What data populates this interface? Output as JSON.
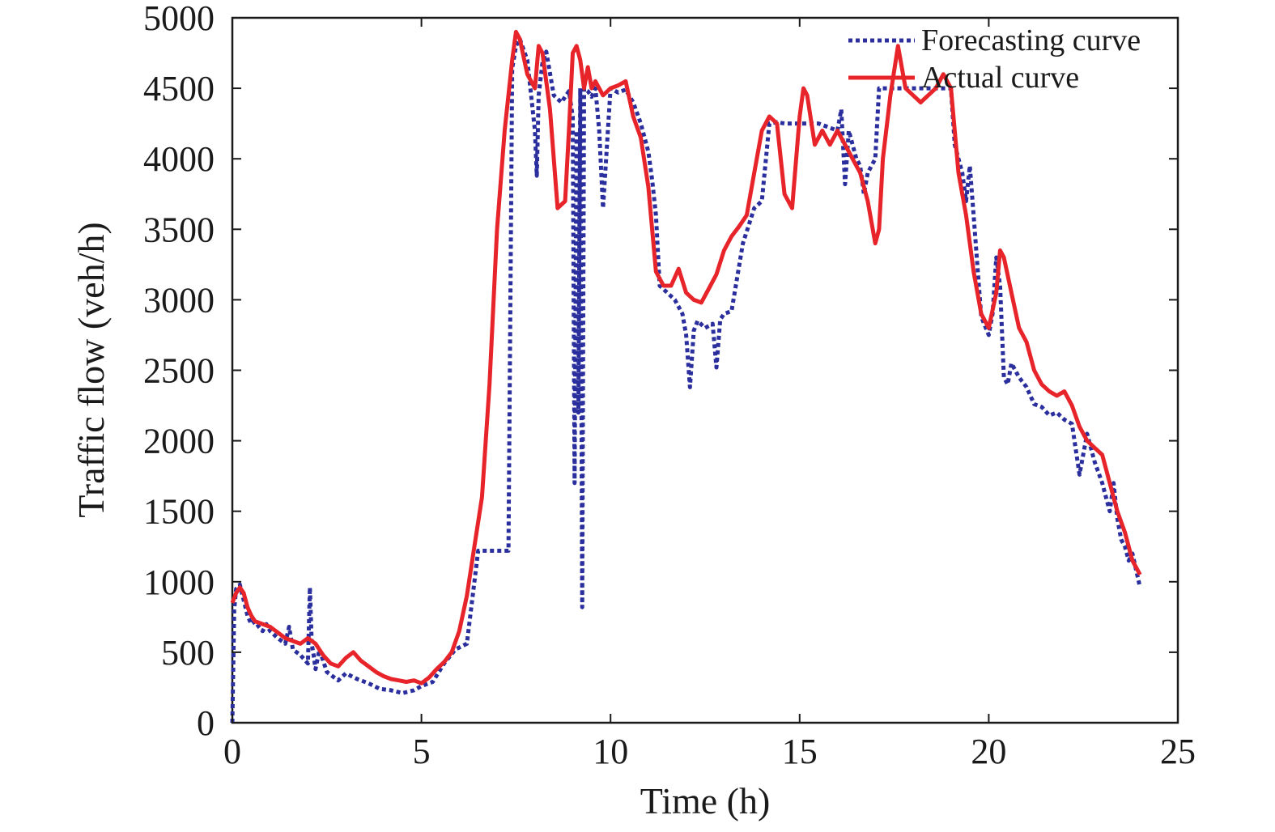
{
  "chart_data": {
    "type": "line",
    "xlabel": "Time (h)",
    "ylabel": "Traffic flow (veh/h)",
    "xlim": [
      0,
      25
    ],
    "ylim": [
      0,
      5000
    ],
    "xticks": [
      0,
      5,
      10,
      15,
      20,
      25
    ],
    "yticks": [
      0,
      500,
      1000,
      1500,
      2000,
      2500,
      3000,
      3500,
      4000,
      4500,
      5000
    ],
    "xtick_labels": [
      "0",
      "5",
      "10",
      "15",
      "20",
      "25"
    ],
    "ytick_labels": [
      "0",
      "500",
      "1000",
      "1500",
      "2000",
      "2500",
      "3000",
      "3500",
      "4000",
      "4500",
      "5000"
    ],
    "grid": false,
    "legend_position": "top-right",
    "series": [
      {
        "name": "Forecasting curve",
        "color": "#2b2f9e",
        "style": "dotted",
        "x": [
          0.0,
          0.05,
          0.1,
          0.2,
          0.3,
          0.4,
          0.5,
          0.6,
          0.7,
          0.8,
          0.9,
          1.0,
          1.2,
          1.4,
          1.5,
          1.6,
          1.8,
          2.0,
          2.05,
          2.1,
          2.15,
          2.2,
          2.3,
          2.5,
          2.8,
          3.0,
          3.3,
          3.6,
          3.9,
          4.2,
          4.5,
          4.8,
          5.0,
          5.3,
          5.6,
          5.9,
          6.2,
          6.5,
          6.7,
          7.0,
          7.3,
          7.4,
          7.5,
          7.6,
          7.8,
          8.0,
          8.05,
          8.1,
          8.2,
          8.3,
          8.5,
          8.7,
          8.9,
          9.0,
          9.05,
          9.1,
          9.15,
          9.2,
          9.25,
          9.3,
          9.4,
          9.5,
          9.6,
          9.7,
          9.8,
          10.0,
          10.2,
          10.4,
          10.6,
          10.8,
          11.0,
          11.1,
          11.2,
          11.3,
          11.5,
          11.7,
          11.9,
          12.0,
          12.1,
          12.2,
          12.3,
          12.5,
          12.7,
          12.8,
          12.9,
          13.0,
          13.2,
          13.5,
          13.8,
          14.0,
          14.2,
          14.4,
          14.6,
          14.8,
          15.0,
          15.5,
          16.0,
          16.1,
          16.2,
          16.3,
          16.5,
          16.6,
          16.7,
          16.8,
          17.0,
          17.1,
          17.2,
          17.4,
          17.6,
          18.0,
          18.4,
          18.8,
          19.0,
          19.1,
          19.2,
          19.3,
          19.4,
          19.5,
          19.6,
          19.8,
          20.0,
          20.1,
          20.2,
          20.3,
          20.4,
          20.5,
          20.6,
          20.8,
          21.0,
          21.2,
          21.4,
          21.6,
          21.8,
          22.0,
          22.2,
          22.4,
          22.6,
          22.8,
          23.0,
          23.1,
          23.2,
          23.3,
          23.4,
          23.5,
          23.6,
          23.7,
          23.8,
          24.0
        ],
        "y": [
          0,
          800,
          950,
          980,
          870,
          760,
          700,
          720,
          680,
          650,
          700,
          650,
          600,
          560,
          680,
          520,
          480,
          420,
          960,
          560,
          480,
          380,
          520,
          360,
          300,
          350,
          310,
          280,
          240,
          230,
          210,
          230,
          260,
          290,
          420,
          520,
          560,
          1220,
          1220,
          1220,
          1220,
          4640,
          4800,
          4850,
          4700,
          4200,
          3880,
          4450,
          4680,
          4760,
          4450,
          4400,
          4480,
          4300,
          1700,
          4200,
          2200,
          4500,
          820,
          4500,
          4480,
          4440,
          4500,
          4200,
          3650,
          4500,
          4470,
          4490,
          4400,
          4250,
          4050,
          3850,
          3600,
          3100,
          3050,
          3000,
          2900,
          2750,
          2380,
          2780,
          2850,
          2800,
          2830,
          2520,
          2860,
          2900,
          2920,
          3400,
          3650,
          3700,
          4250,
          4260,
          4250,
          4250,
          4250,
          4250,
          4200,
          4350,
          3820,
          4200,
          4000,
          3950,
          3750,
          3900,
          4000,
          4500,
          4500,
          4500,
          4500,
          4500,
          4500,
          4500,
          4500,
          4100,
          4000,
          3900,
          3700,
          3950,
          3600,
          2880,
          2750,
          2900,
          3300,
          3100,
          2450,
          2400,
          2550,
          2450,
          2380,
          2260,
          2240,
          2180,
          2200,
          2150,
          2120,
          1760,
          2050,
          1850,
          1700,
          1600,
          1500,
          1700,
          1450,
          1300,
          1250,
          1150,
          1200,
          960
        ]
      },
      {
        "name": "Actual curve",
        "color": "#e8242b",
        "style": "solid",
        "x": [
          0.0,
          0.1,
          0.2,
          0.3,
          0.4,
          0.5,
          0.6,
          0.8,
          1.0,
          1.2,
          1.4,
          1.6,
          1.8,
          2.0,
          2.2,
          2.4,
          2.6,
          2.8,
          3.0,
          3.2,
          3.4,
          3.6,
          3.8,
          4.0,
          4.2,
          4.4,
          4.6,
          4.8,
          5.0,
          5.2,
          5.4,
          5.6,
          5.8,
          6.0,
          6.2,
          6.4,
          6.6,
          6.8,
          7.0,
          7.2,
          7.4,
          7.5,
          7.6,
          7.8,
          8.0,
          8.1,
          8.2,
          8.4,
          8.6,
          8.8,
          8.9,
          9.0,
          9.1,
          9.2,
          9.3,
          9.4,
          9.5,
          9.6,
          9.8,
          10.0,
          10.2,
          10.4,
          10.6,
          10.8,
          11.0,
          11.2,
          11.4,
          11.6,
          11.8,
          12.0,
          12.2,
          12.4,
          12.6,
          12.8,
          13.0,
          13.2,
          13.4,
          13.6,
          13.8,
          14.0,
          14.2,
          14.4,
          14.6,
          14.8,
          15.0,
          15.1,
          15.2,
          15.4,
          15.6,
          15.8,
          16.0,
          16.2,
          16.4,
          16.6,
          16.8,
          17.0,
          17.1,
          17.2,
          17.4,
          17.6,
          17.8,
          18.0,
          18.2,
          18.4,
          18.6,
          18.8,
          19.0,
          19.2,
          19.4,
          19.6,
          19.8,
          20.0,
          20.2,
          20.3,
          20.4,
          20.6,
          20.8,
          21.0,
          21.2,
          21.4,
          21.6,
          21.8,
          22.0,
          22.2,
          22.4,
          22.6,
          22.8,
          23.0,
          23.2,
          23.4,
          23.6,
          23.8,
          24.0
        ],
        "y": [
          850,
          920,
          960,
          920,
          820,
          760,
          720,
          700,
          680,
          640,
          600,
          580,
          560,
          600,
          560,
          480,
          420,
          400,
          460,
          500,
          440,
          400,
          360,
          330,
          310,
          300,
          290,
          300,
          280,
          320,
          380,
          430,
          500,
          650,
          900,
          1250,
          1600,
          2400,
          3500,
          4200,
          4700,
          4900,
          4850,
          4600,
          4500,
          4800,
          4750,
          4350,
          3650,
          3700,
          4200,
          4750,
          4800,
          4700,
          4500,
          4650,
          4500,
          4550,
          4450,
          4500,
          4520,
          4550,
          4300,
          4150,
          3800,
          3200,
          3100,
          3100,
          3220,
          3050,
          3000,
          2980,
          3080,
          3180,
          3350,
          3450,
          3520,
          3600,
          3900,
          4200,
          4300,
          4250,
          3750,
          3650,
          4300,
          4500,
          4450,
          4100,
          4200,
          4100,
          4200,
          4100,
          4000,
          3900,
          3700,
          3400,
          3500,
          4000,
          4450,
          4800,
          4500,
          4450,
          4400,
          4450,
          4500,
          4600,
          4500,
          3900,
          3600,
          3200,
          2900,
          2800,
          3050,
          3350,
          3300,
          3050,
          2800,
          2700,
          2500,
          2400,
          2350,
          2320,
          2350,
          2250,
          2100,
          2000,
          1950,
          1900,
          1700,
          1500,
          1350,
          1150,
          1050
        ]
      }
    ]
  }
}
